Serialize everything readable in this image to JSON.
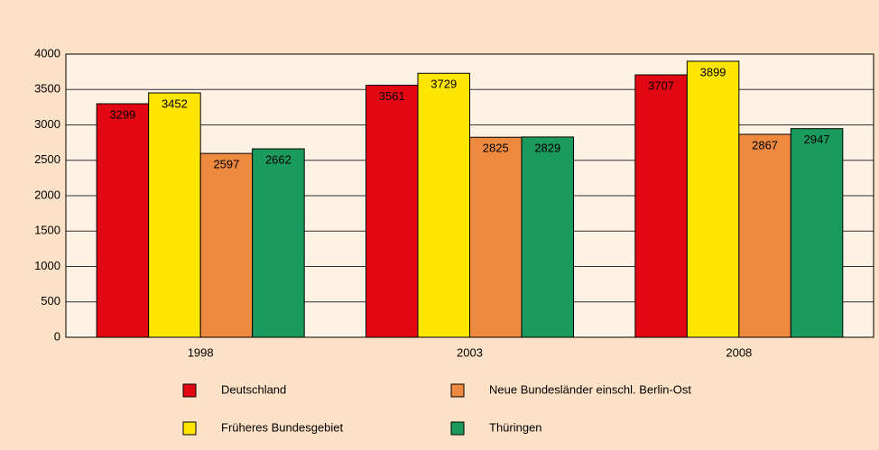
{
  "chart_data": {
    "type": "bar",
    "categories": [
      "1998",
      "2003",
      "2008"
    ],
    "series": [
      {
        "name": "Deutschland",
        "color": "#e30613",
        "values": [
          3299,
          3561,
          3707
        ]
      },
      {
        "name": "Früheres Bundesgebiet",
        "color": "#ffe600",
        "values": [
          3452,
          3729,
          3899
        ]
      },
      {
        "name": "Neue Bundesländer einschl. Berlin-Ost",
        "color": "#ee8940",
        "values": [
          2597,
          2825,
          2867
        ]
      },
      {
        "name": "Thüringen",
        "color": "#1a9a5c",
        "values": [
          2662,
          2829,
          2947
        ]
      }
    ],
    "ylim": [
      0,
      4000
    ],
    "yticks": [
      0,
      500,
      1000,
      1500,
      2000,
      2500,
      3000,
      3500,
      4000
    ],
    "grid": true
  }
}
